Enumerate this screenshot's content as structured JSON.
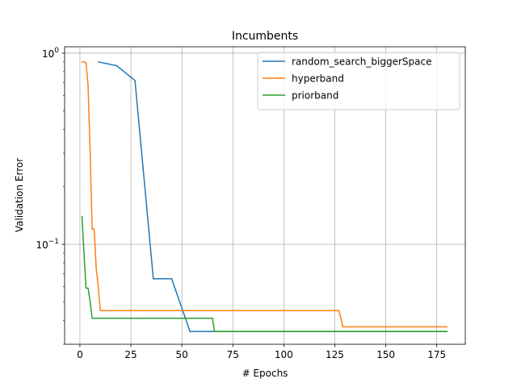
{
  "chart_data": {
    "type": "line",
    "title": "Incumbents",
    "xlabel": "# Epochs",
    "ylabel": "Validation Error",
    "xlim": [
      -7.5,
      189
    ],
    "ylim": [
      0.03,
      1.08
    ],
    "yscale": "log",
    "grid": "x-major and y-decade",
    "legend_position": "top-right",
    "x_ticks": [
      0,
      25,
      50,
      75,
      100,
      125,
      150,
      175
    ],
    "x_tick_labels": [
      "0",
      "25",
      "50",
      "75",
      "100",
      "125",
      "150",
      "175"
    ],
    "y_ticks": [
      1.0,
      0.1
    ],
    "y_tick_mantissas": [
      "10",
      "10"
    ],
    "y_tick_exponents": [
      "0",
      "−1"
    ],
    "series": [
      {
        "name": "random_search_biggerSpace",
        "color": "#1f77b4",
        "x": [
          9,
          18,
          27,
          36,
          45,
          54,
          63,
          72,
          81,
          90,
          180
        ],
        "y": [
          0.9,
          0.86,
          0.72,
          0.066,
          0.066,
          0.035,
          0.035,
          0.035,
          0.035,
          0.035,
          0.035
        ]
      },
      {
        "name": "hyperband",
        "color": "#ff7f0e",
        "x": [
          1,
          2,
          3,
          4,
          5,
          6,
          7,
          8,
          9,
          10,
          11,
          127,
          128,
          129,
          180
        ],
        "y": [
          0.9,
          0.9,
          0.89,
          0.68,
          0.3,
          0.12,
          0.12,
          0.075,
          0.06,
          0.045,
          0.045,
          0.045,
          0.041,
          0.037,
          0.037
        ]
      },
      {
        "name": "priorband",
        "color": "#2ca02c",
        "x": [
          1,
          2,
          3,
          4,
          5,
          6,
          7,
          64,
          65,
          66,
          180
        ],
        "y": [
          0.14,
          0.09,
          0.059,
          0.059,
          0.05,
          0.041,
          0.041,
          0.041,
          0.041,
          0.035,
          0.035
        ]
      }
    ]
  }
}
